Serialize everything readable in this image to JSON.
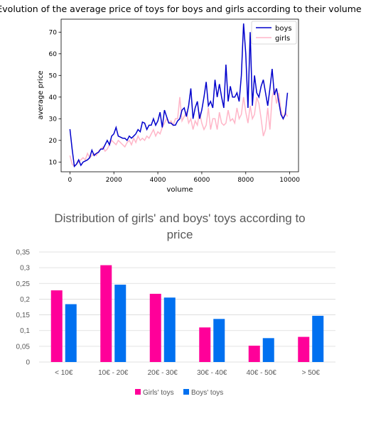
{
  "chart_data": [
    {
      "type": "line",
      "title": "Evolution of the average price of toys for boys and girls according to their volume",
      "xlabel": "volume",
      "ylabel": "average price",
      "xlim": [
        -400,
        10400
      ],
      "ylim": [
        5.5,
        76
      ],
      "x_ticks": [
        0,
        2000,
        4000,
        6000,
        8000,
        10000
      ],
      "y_ticks": [
        10,
        20,
        30,
        40,
        50,
        60,
        70
      ],
      "legend": "top-right",
      "grid": false,
      "colors": {
        "boys": "#0000cc",
        "girls": "#ffb6c8"
      },
      "series": [
        {
          "name": "boys",
          "color": "#0000cc",
          "points": [
            [
              0,
              25.2
            ],
            [
              100,
              16
            ],
            [
              200,
              8
            ],
            [
              300,
              9
            ],
            [
              400,
              11
            ],
            [
              500,
              8.5
            ],
            [
              600,
              10
            ],
            [
              700,
              10.5
            ],
            [
              800,
              11
            ],
            [
              900,
              12
            ],
            [
              1000,
              15.5
            ],
            [
              1100,
              13
            ],
            [
              1200,
              14
            ],
            [
              1300,
              14.5
            ],
            [
              1400,
              16
            ],
            [
              1500,
              16
            ],
            [
              1600,
              18
            ],
            [
              1700,
              20
            ],
            [
              1800,
              18
            ],
            [
              1900,
              22
            ],
            [
              2000,
              23
            ],
            [
              2100,
              26
            ],
            [
              2200,
              22
            ],
            [
              2300,
              21.5
            ],
            [
              2400,
              21
            ],
            [
              2500,
              21
            ],
            [
              2600,
              20
            ],
            [
              2700,
              22
            ],
            [
              2800,
              21
            ],
            [
              2900,
              22
            ],
            [
              3000,
              23
            ],
            [
              3100,
              25
            ],
            [
              3200,
              24
            ],
            [
              3300,
              28.5
            ],
            [
              3400,
              28
            ],
            [
              3500,
              25
            ],
            [
              3600,
              27
            ],
            [
              3700,
              27
            ],
            [
              3800,
              30
            ],
            [
              3900,
              27
            ],
            [
              4000,
              29
            ],
            [
              4100,
              33
            ],
            [
              4200,
              26
            ],
            [
              4300,
              34
            ],
            [
              4400,
              31
            ],
            [
              4500,
              28
            ],
            [
              4600,
              28
            ],
            [
              4700,
              27
            ],
            [
              4800,
              27
            ],
            [
              4900,
              29
            ],
            [
              5000,
              30
            ],
            [
              5100,
              34
            ],
            [
              5200,
              35
            ],
            [
              5300,
              31
            ],
            [
              5400,
              36
            ],
            [
              5500,
              44
            ],
            [
              5600,
              30
            ],
            [
              5700,
              35
            ],
            [
              5800,
              38
            ],
            [
              5900,
              30
            ],
            [
              6000,
              34
            ],
            [
              6100,
              40
            ],
            [
              6200,
              47
            ],
            [
              6300,
              36
            ],
            [
              6400,
              38
            ],
            [
              6500,
              35
            ],
            [
              6600,
              48
            ],
            [
              6700,
              40
            ],
            [
              6800,
              46
            ],
            [
              6900,
              40
            ],
            [
              7000,
              35
            ],
            [
              7100,
              55
            ],
            [
              7200,
              38
            ],
            [
              7300,
              45
            ],
            [
              7400,
              40
            ],
            [
              7500,
              40
            ],
            [
              7600,
              42
            ],
            [
              7700,
              38
            ],
            [
              7800,
              50
            ],
            [
              7900,
              74
            ],
            [
              8000,
              60
            ],
            [
              8100,
              35
            ],
            [
              8200,
              70
            ],
            [
              8300,
              36
            ],
            [
              8400,
              50
            ],
            [
              8500,
              42
            ],
            [
              8600,
              40
            ],
            [
              8700,
              45
            ],
            [
              8800,
              48
            ],
            [
              8900,
              42
            ],
            [
              9000,
              36
            ],
            [
              9100,
              44
            ],
            [
              9200,
              53
            ],
            [
              9300,
              41
            ],
            [
              9400,
              44
            ],
            [
              9500,
              38
            ],
            [
              9600,
              32
            ],
            [
              9700,
              30
            ],
            [
              9800,
              32
            ],
            [
              9900,
              42
            ]
          ]
        },
        {
          "name": "girls",
          "color": "#ffb6c8",
          "points": [
            [
              0,
              13
            ],
            [
              100,
              9
            ],
            [
              200,
              8
            ],
            [
              300,
              9
            ],
            [
              400,
              10
            ],
            [
              500,
              11
            ],
            [
              600,
              12
            ],
            [
              700,
              11
            ],
            [
              800,
              14
            ],
            [
              900,
              12
            ],
            [
              1000,
              13
            ],
            [
              1100,
              14
            ],
            [
              1200,
              13
            ],
            [
              1300,
              15
            ],
            [
              1400,
              16
            ],
            [
              1500,
              17
            ],
            [
              1600,
              15
            ],
            [
              1700,
              16
            ],
            [
              1800,
              18
            ],
            [
              1900,
              20
            ],
            [
              2000,
              19
            ],
            [
              2100,
              18
            ],
            [
              2200,
              20
            ],
            [
              2300,
              19
            ],
            [
              2400,
              18
            ],
            [
              2500,
              17
            ],
            [
              2600,
              19
            ],
            [
              2700,
              20
            ],
            [
              2800,
              18
            ],
            [
              2900,
              21
            ],
            [
              3000,
              19
            ],
            [
              3100,
              22
            ],
            [
              3200,
              20
            ],
            [
              3300,
              21
            ],
            [
              3400,
              20
            ],
            [
              3500,
              22
            ],
            [
              3600,
              21
            ],
            [
              3700,
              23
            ],
            [
              3800,
              25
            ],
            [
              3900,
              22
            ],
            [
              4000,
              24
            ],
            [
              4100,
              23
            ],
            [
              4200,
              26
            ],
            [
              4300,
              28
            ],
            [
              4400,
              30
            ],
            [
              4500,
              28
            ],
            [
              4600,
              29
            ],
            [
              4700,
              27
            ],
            [
              4800,
              30
            ],
            [
              4900,
              30
            ],
            [
              5000,
              40
            ],
            [
              5100,
              29
            ],
            [
              5200,
              31
            ],
            [
              5300,
              33
            ],
            [
              5400,
              28
            ],
            [
              5500,
              30
            ],
            [
              5600,
              25
            ],
            [
              5700,
              29
            ],
            [
              5800,
              27
            ],
            [
              5900,
              33
            ],
            [
              6000,
              28
            ],
            [
              6100,
              25
            ],
            [
              6200,
              27
            ],
            [
              6300,
              35
            ],
            [
              6400,
              25
            ],
            [
              6500,
              30
            ],
            [
              6600,
              30
            ],
            [
              6700,
              25
            ],
            [
              6800,
              33
            ],
            [
              6900,
              28
            ],
            [
              7000,
              27
            ],
            [
              7100,
              28
            ],
            [
              7200,
              34
            ],
            [
              7300,
              29
            ],
            [
              7400,
              30
            ],
            [
              7500,
              28
            ],
            [
              7600,
              35
            ],
            [
              7700,
              30
            ],
            [
              7800,
              32
            ],
            [
              7900,
              40
            ],
            [
              8000,
              33
            ],
            [
              8100,
              28
            ],
            [
              8200,
              36
            ],
            [
              8300,
              30
            ],
            [
              8400,
              32
            ],
            [
              8500,
              40
            ],
            [
              8600,
              37
            ],
            [
              8700,
              30
            ],
            [
              8800,
              22
            ],
            [
              8900,
              25
            ],
            [
              9000,
              35
            ],
            [
              9100,
              25
            ],
            [
              9200,
              40
            ],
            [
              9300,
              44
            ],
            [
              9400,
              37
            ],
            [
              9500,
              42
            ],
            [
              9600,
              34
            ],
            [
              9700,
              30
            ],
            [
              9800,
              33
            ],
            [
              9900,
              31
            ]
          ]
        }
      ]
    },
    {
      "type": "bar",
      "title": "Distribution of girls' and boys' toys according to price",
      "categories": [
        "< 10€",
        "10€ - 20€",
        "20€ - 30€",
        "30€ - 40€",
        "40€ - 50€",
        "> 50€"
      ],
      "ylim": [
        0,
        0.35
      ],
      "y_ticks": [
        "0",
        "0,05",
        "0,1",
        "0,15",
        "0,2",
        "0,25",
        "0,3",
        "0,35"
      ],
      "grid": true,
      "legend": "bottom",
      "series": [
        {
          "name": "Girls' toys",
          "color": "#ff0099",
          "values": [
            0.228,
            0.308,
            0.217,
            0.11,
            0.052,
            0.08
          ]
        },
        {
          "name": "Boys' toys",
          "color": "#0070f0",
          "values": [
            0.184,
            0.246,
            0.205,
            0.137,
            0.076,
            0.147
          ]
        }
      ]
    }
  ]
}
